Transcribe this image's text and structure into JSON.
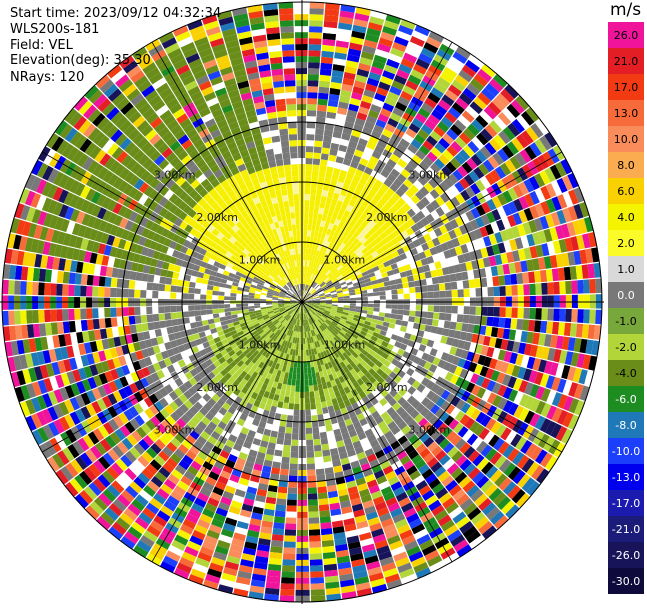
{
  "header": {
    "start_time": "Start time: 2023/09/12 04:32:34",
    "instrument": "WLS200s-181",
    "field": "Field: VEL",
    "elevation": "Elevation(deg): 35.30",
    "nrays": "NRays: 120"
  },
  "chart_data": {
    "type": "heatmap",
    "projection": "polar-ppi",
    "rays": 120,
    "range_rings_km": [
      1.0,
      2.0,
      3.0
    ],
    "ring_labels": [
      "1.00km",
      "2.00km",
      "3.00km"
    ],
    "azimuth_spokes_deg": [
      0,
      30,
      60,
      90,
      120,
      150,
      180,
      210,
      240,
      270,
      300,
      330
    ],
    "colorbar": {
      "unit": "m/s",
      "tick_labels": [
        "26.0",
        "21.0",
        "17.0",
        "13.0",
        "10.0",
        "8.0",
        "6.0",
        "4.0",
        "2.0",
        "1.0",
        "0.0",
        "-1.0",
        "-2.0",
        "-4.0",
        "-6.0",
        "-8.0",
        "-10.0",
        "-13.0",
        "-17.0",
        "-21.0",
        "-26.0",
        "-30.0"
      ],
      "colors": [
        "#f0149b",
        "#e41e25",
        "#f23a13",
        "#f76a3a",
        "#fa8b5a",
        "#fbab50",
        "#fad100",
        "#f4f400",
        "#fbfb2a",
        "#d9d9d9",
        "#787878",
        "#78a83b",
        "#b2d63a",
        "#6a8d1a",
        "#1e8d21",
        "#1f79b8",
        "#1c3ffc",
        "#0000ee",
        "#1b1bb0",
        "#1b1b7a",
        "#17145a",
        "#0f0a3c"
      ]
    },
    "velocity_pattern": {
      "north_inner": "positive 2.0 to 4.0 m/s",
      "south_inner": "negative -1.0 to -4.0 m/s",
      "outer": "noise, full color range"
    }
  },
  "colors": {
    "yellow": "#f6f000",
    "pale_yellow": "#faf59a",
    "grey": "#787878",
    "olive": "#6a8d1a",
    "light_green": "#b2d63a",
    "dark_green": "#1e8d21",
    "black": "#000000"
  }
}
